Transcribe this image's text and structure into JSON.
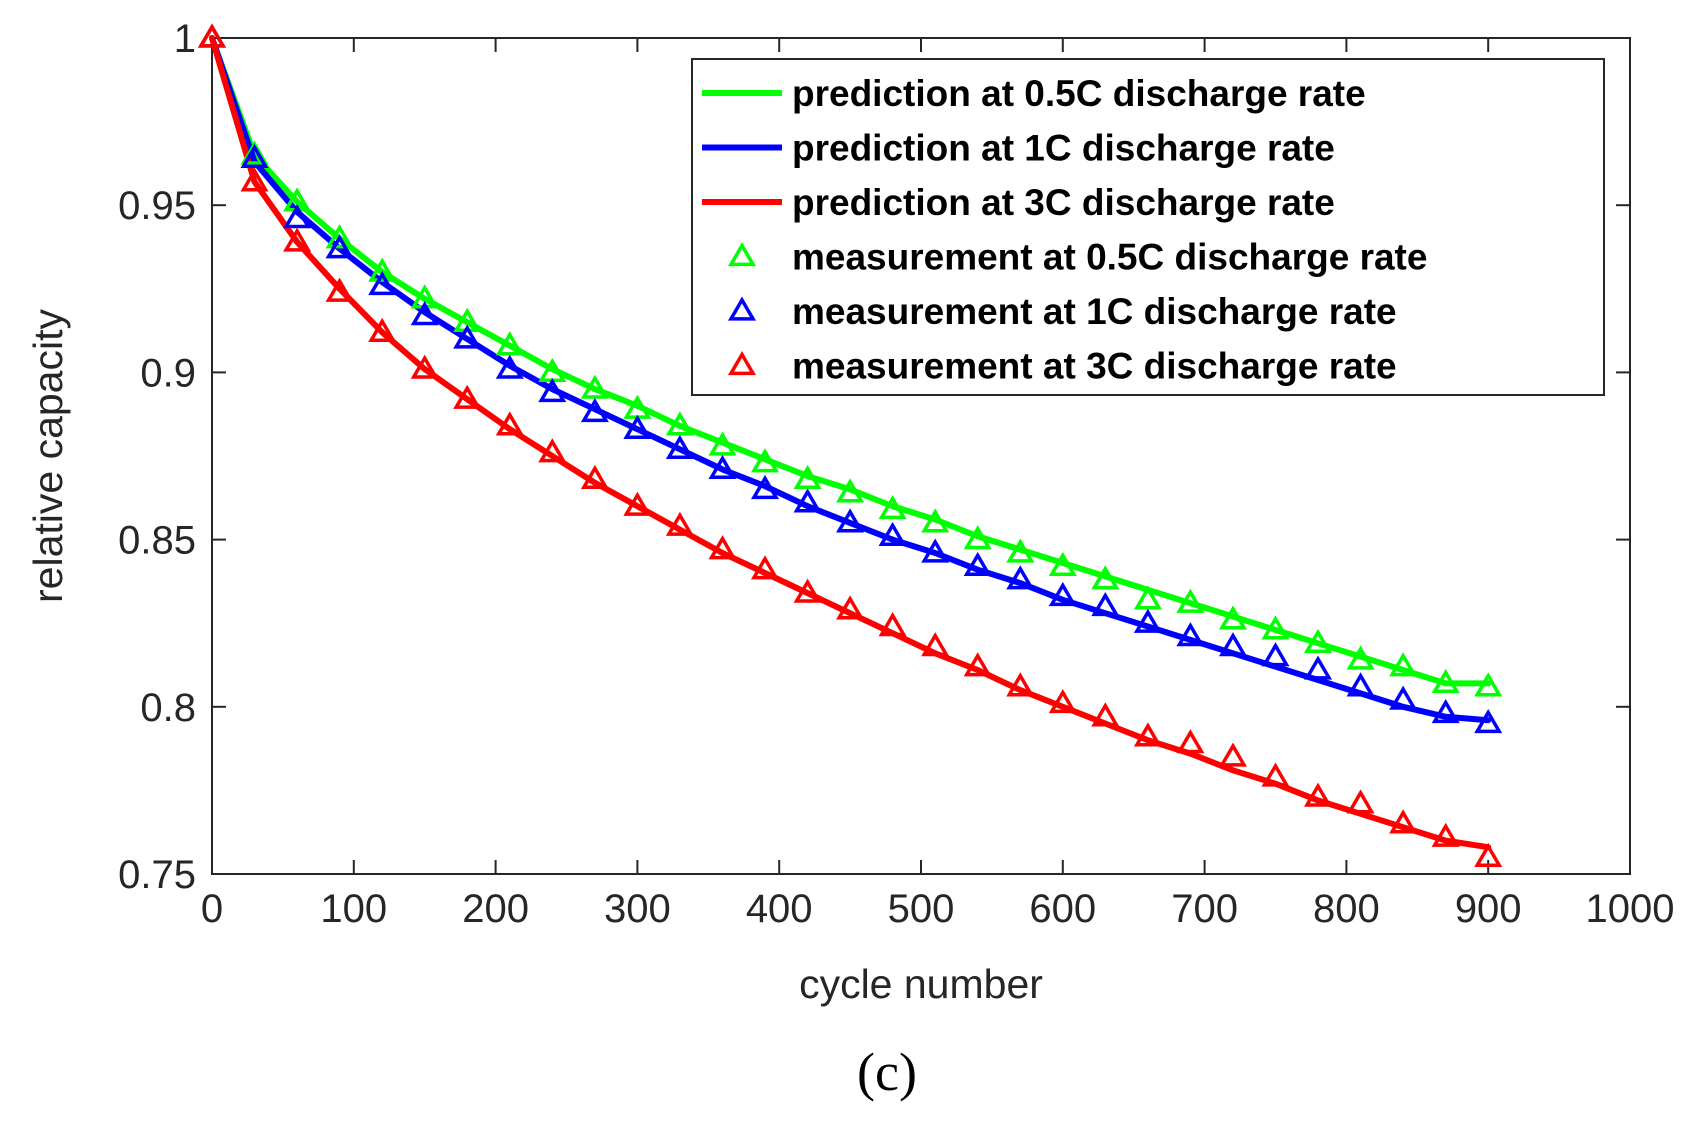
{
  "chart_data": {
    "type": "line",
    "title": "",
    "xlabel": "cycle number",
    "ylabel": "relative capacity",
    "caption": "(c)",
    "xlim": [
      0,
      1000
    ],
    "ylim": [
      0.75,
      1
    ],
    "xticks": [
      "0",
      "100",
      "200",
      "300",
      "400",
      "500",
      "600",
      "700",
      "800",
      "900",
      "1000"
    ],
    "yticks": [
      "0.75",
      "0.8",
      "0.85",
      "0.9",
      "0.95",
      "1"
    ],
    "legend_position": "top-right",
    "series": [
      {
        "name": "prediction at 0.5C discharge rate",
        "kind": "line",
        "color": "#00ff00",
        "x": [
          0,
          30,
          60,
          90,
          120,
          150,
          180,
          210,
          240,
          270,
          300,
          330,
          360,
          390,
          420,
          450,
          480,
          510,
          540,
          570,
          600,
          630,
          660,
          690,
          720,
          750,
          780,
          810,
          840,
          870,
          900
        ],
        "y": [
          1.0,
          0.965,
          0.951,
          0.94,
          0.93,
          0.922,
          0.915,
          0.908,
          0.901,
          0.895,
          0.89,
          0.884,
          0.879,
          0.874,
          0.869,
          0.865,
          0.86,
          0.856,
          0.851,
          0.847,
          0.843,
          0.839,
          0.835,
          0.831,
          0.827,
          0.823,
          0.819,
          0.815,
          0.811,
          0.807,
          0.807
        ]
      },
      {
        "name": "prediction at 1C discharge rate",
        "kind": "line",
        "color": "#0000ff",
        "x": [
          0,
          30,
          60,
          90,
          120,
          150,
          180,
          210,
          240,
          270,
          300,
          330,
          360,
          390,
          420,
          450,
          480,
          510,
          540,
          570,
          600,
          630,
          660,
          690,
          720,
          750,
          780,
          810,
          840,
          870,
          900
        ],
        "y": [
          1.0,
          0.963,
          0.948,
          0.937,
          0.927,
          0.918,
          0.91,
          0.902,
          0.895,
          0.889,
          0.883,
          0.877,
          0.871,
          0.866,
          0.86,
          0.855,
          0.85,
          0.846,
          0.841,
          0.837,
          0.832,
          0.828,
          0.824,
          0.82,
          0.816,
          0.812,
          0.808,
          0.804,
          0.8,
          0.797,
          0.796
        ]
      },
      {
        "name": "prediction at 3C discharge rate",
        "kind": "line",
        "color": "#ff0000",
        "x": [
          0,
          30,
          60,
          90,
          120,
          150,
          180,
          210,
          240,
          270,
          300,
          330,
          360,
          390,
          420,
          450,
          480,
          510,
          540,
          570,
          600,
          630,
          660,
          690,
          720,
          750,
          780,
          810,
          840,
          870,
          900
        ],
        "y": [
          1.0,
          0.957,
          0.939,
          0.925,
          0.912,
          0.901,
          0.892,
          0.883,
          0.875,
          0.867,
          0.86,
          0.853,
          0.846,
          0.84,
          0.834,
          0.828,
          0.822,
          0.816,
          0.811,
          0.805,
          0.8,
          0.795,
          0.79,
          0.786,
          0.781,
          0.777,
          0.772,
          0.768,
          0.764,
          0.76,
          0.758
        ]
      },
      {
        "name": "measurement at 0.5C discharge rate",
        "kind": "marker",
        "color": "#00ff00",
        "x": [
          0,
          30,
          60,
          90,
          120,
          150,
          180,
          210,
          240,
          270,
          300,
          330,
          360,
          390,
          420,
          450,
          480,
          510,
          540,
          570,
          600,
          630,
          660,
          690,
          720,
          750,
          780,
          810,
          840,
          870,
          900
        ],
        "y": [
          1.0,
          0.965,
          0.951,
          0.94,
          0.93,
          0.922,
          0.915,
          0.908,
          0.9,
          0.895,
          0.889,
          0.884,
          0.878,
          0.873,
          0.868,
          0.864,
          0.859,
          0.855,
          0.85,
          0.846,
          0.842,
          0.838,
          0.832,
          0.831,
          0.826,
          0.823,
          0.819,
          0.814,
          0.812,
          0.807,
          0.806
        ]
      },
      {
        "name": "measurement at 1C discharge rate",
        "kind": "marker",
        "color": "#0000ff",
        "x": [
          0,
          30,
          60,
          90,
          120,
          150,
          180,
          210,
          240,
          270,
          300,
          330,
          360,
          390,
          420,
          450,
          480,
          510,
          540,
          570,
          600,
          630,
          660,
          690,
          720,
          750,
          780,
          810,
          840,
          870,
          900
        ],
        "y": [
          1.0,
          0.964,
          0.946,
          0.937,
          0.926,
          0.917,
          0.91,
          0.901,
          0.894,
          0.888,
          0.883,
          0.877,
          0.871,
          0.865,
          0.861,
          0.855,
          0.851,
          0.846,
          0.842,
          0.838,
          0.833,
          0.83,
          0.825,
          0.821,
          0.818,
          0.815,
          0.811,
          0.806,
          0.802,
          0.798,
          0.795
        ]
      },
      {
        "name": "measurement at 3C discharge rate",
        "kind": "marker",
        "color": "#ff0000",
        "x": [
          0,
          30,
          60,
          90,
          120,
          150,
          180,
          210,
          240,
          270,
          300,
          330,
          360,
          390,
          420,
          450,
          480,
          510,
          540,
          570,
          600,
          630,
          660,
          690,
          720,
          750,
          780,
          810,
          840,
          870,
          900
        ],
        "y": [
          1.0,
          0.957,
          0.939,
          0.924,
          0.912,
          0.901,
          0.892,
          0.884,
          0.876,
          0.868,
          0.86,
          0.854,
          0.847,
          0.841,
          0.834,
          0.829,
          0.824,
          0.818,
          0.812,
          0.806,
          0.801,
          0.797,
          0.791,
          0.789,
          0.785,
          0.779,
          0.773,
          0.771,
          0.765,
          0.761,
          0.755
        ]
      }
    ]
  }
}
